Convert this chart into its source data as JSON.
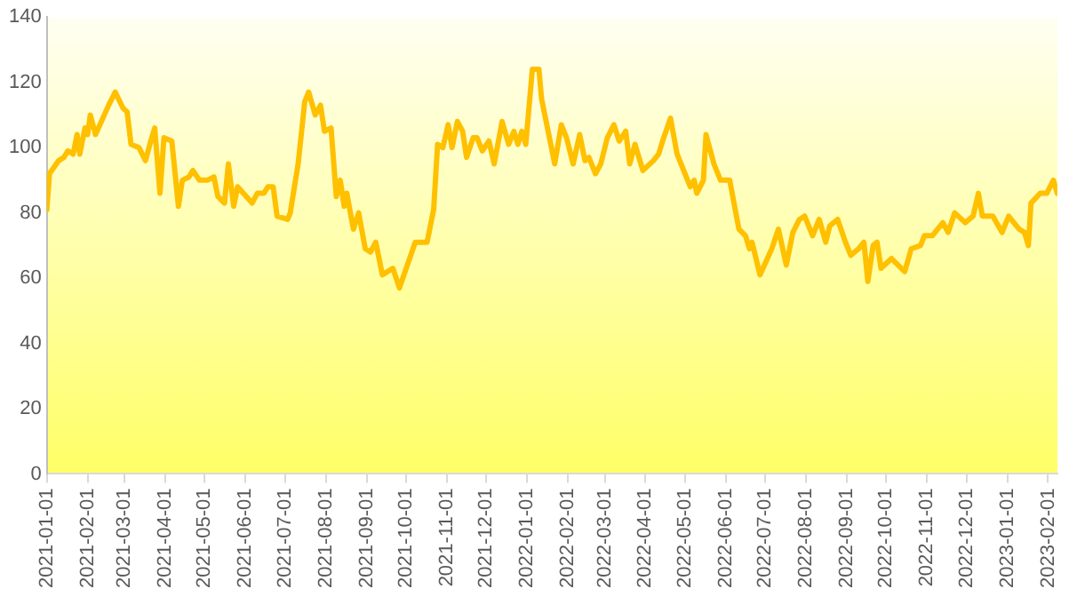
{
  "chart_data": {
    "type": "line",
    "color": "#ffc000",
    "line_style": "solid",
    "x": [
      "2021-01-01",
      "2021-01-03",
      "2021-01-10",
      "2021-01-14",
      "2021-01-17",
      "2021-01-21",
      "2021-01-24",
      "2021-01-26",
      "2021-01-30",
      "2021-02-01",
      "2021-02-03",
      "2021-02-07",
      "2021-02-17",
      "2021-02-22",
      "2021-02-28",
      "2021-03-03",
      "2021-03-06",
      "2021-03-12",
      "2021-03-17",
      "2021-03-21",
      "2021-03-24",
      "2021-03-28",
      "2021-03-31",
      "2021-04-06",
      "2021-04-11",
      "2021-04-14",
      "2021-04-19",
      "2021-04-22",
      "2021-04-27",
      "2021-05-03",
      "2021-05-08",
      "2021-05-11",
      "2021-05-16",
      "2021-05-19",
      "2021-05-23",
      "2021-05-26",
      "2021-06-06",
      "2021-06-10",
      "2021-06-15",
      "2021-06-18",
      "2021-06-22",
      "2021-06-25",
      "2021-07-03",
      "2021-07-05",
      "2021-07-11",
      "2021-07-16",
      "2021-07-19",
      "2021-07-24",
      "2021-07-28",
      "2021-07-31",
      "2021-08-05",
      "2021-08-09",
      "2021-08-12",
      "2021-08-15",
      "2021-08-17",
      "2021-08-22",
      "2021-08-26",
      "2021-08-31",
      "2021-09-04",
      "2021-09-08",
      "2021-09-13",
      "2021-09-21",
      "2021-09-26",
      "2021-10-08",
      "2021-10-14",
      "2021-10-17",
      "2021-10-22",
      "2021-10-25",
      "2021-10-29",
      "2021-11-02",
      "2021-11-05",
      "2021-11-09",
      "2021-11-13",
      "2021-11-16",
      "2021-11-21",
      "2021-11-24",
      "2021-11-28",
      "2021-12-03",
      "2021-12-07",
      "2021-12-13",
      "2021-12-18",
      "2021-12-22",
      "2021-12-25",
      "2021-12-28",
      "2021-12-31",
      "2022-01-05",
      "2022-01-10",
      "2022-01-12",
      "2022-01-22",
      "2022-01-27",
      "2022-01-31",
      "2022-02-05",
      "2022-02-10",
      "2022-02-14",
      "2022-02-17",
      "2022-02-22",
      "2022-02-26",
      "2022-03-03",
      "2022-03-08",
      "2022-03-12",
      "2022-03-17",
      "2022-03-20",
      "2022-03-24",
      "2022-03-30",
      "2022-04-07",
      "2022-04-11",
      "2022-04-14",
      "2022-04-20",
      "2022-04-25",
      "2022-05-05",
      "2022-05-08",
      "2022-05-10",
      "2022-05-15",
      "2022-05-17",
      "2022-05-23",
      "2022-05-28",
      "2022-06-04",
      "2022-06-11",
      "2022-06-16",
      "2022-06-19",
      "2022-06-21",
      "2022-06-27",
      "2022-07-06",
      "2022-07-11",
      "2022-07-17",
      "2022-07-22",
      "2022-07-27",
      "2022-07-31",
      "2022-08-06",
      "2022-08-11",
      "2022-08-16",
      "2022-08-19",
      "2022-08-25",
      "2022-08-31",
      "2022-09-04",
      "2022-09-10",
      "2022-09-14",
      "2022-09-17",
      "2022-09-21",
      "2022-09-24",
      "2022-09-27",
      "2022-10-05",
      "2022-10-15",
      "2022-10-20",
      "2022-10-27",
      "2022-10-30",
      "2022-11-05",
      "2022-11-13",
      "2022-11-17",
      "2022-11-22",
      "2022-11-30",
      "2022-12-06",
      "2022-12-10",
      "2022-12-13",
      "2022-12-21",
      "2022-12-28",
      "2023-01-02",
      "2023-01-10",
      "2023-01-14",
      "2023-01-17",
      "2023-01-19",
      "2023-01-26",
      "2023-01-31",
      "2023-02-05",
      "2023-02-08"
    ],
    "values": [
      81,
      92,
      96,
      97,
      99,
      98,
      104,
      98,
      106,
      104,
      110,
      104,
      113,
      117,
      112,
      111,
      101,
      100,
      96,
      102,
      106,
      86,
      103,
      102,
      82,
      90,
      91,
      93,
      90,
      90,
      91,
      85,
      83,
      95,
      82,
      88,
      83,
      86,
      86,
      88,
      88,
      79,
      78,
      80,
      95,
      114,
      117,
      110,
      113,
      105,
      106,
      85,
      90,
      82,
      86,
      75,
      80,
      69,
      68,
      71,
      61,
      63,
      57,
      71,
      71,
      71,
      81,
      101,
      100,
      107,
      100,
      108,
      105,
      97,
      103,
      103,
      99,
      102,
      95,
      108,
      101,
      105,
      101,
      105,
      101,
      124,
      124,
      115,
      95,
      107,
      103,
      95,
      104,
      96,
      97,
      92,
      95,
      103,
      107,
      102,
      105,
      95,
      101,
      93,
      96,
      98,
      102,
      109,
      98,
      88,
      90,
      86,
      90,
      104,
      95,
      90,
      90,
      75,
      73,
      69,
      71,
      61,
      69,
      75,
      64,
      74,
      78,
      79,
      73,
      78,
      71,
      76,
      78,
      71,
      67,
      69,
      71,
      59,
      70,
      71,
      63,
      66,
      62,
      69,
      70,
      73,
      73,
      77,
      74,
      80,
      77,
      79,
      86,
      79,
      79,
      74,
      79,
      75,
      74,
      70,
      83,
      86,
      86,
      90,
      86
    ],
    "xlim": [
      "2021-01-01",
      "2023-02-08"
    ],
    "xticks": [
      "2021-01-01",
      "2021-02-01",
      "2021-03-01",
      "2021-04-01",
      "2021-05-01",
      "2021-06-01",
      "2021-07-01",
      "2021-08-01",
      "2021-09-01",
      "2021-10-01",
      "2021-11-01",
      "2021-12-01",
      "2022-01-01",
      "2022-02-01",
      "2022-03-01",
      "2022-04-01",
      "2022-05-01",
      "2022-06-01",
      "2022-07-01",
      "2022-08-01",
      "2022-09-01",
      "2022-10-01",
      "2022-11-01",
      "2022-12-01",
      "2023-01-01",
      "2023-02-01"
    ],
    "ylim": [
      0,
      140
    ],
    "yticks": [
      0,
      20,
      40,
      60,
      80,
      100,
      120,
      140
    ],
    "grid": false,
    "legend": false
  }
}
